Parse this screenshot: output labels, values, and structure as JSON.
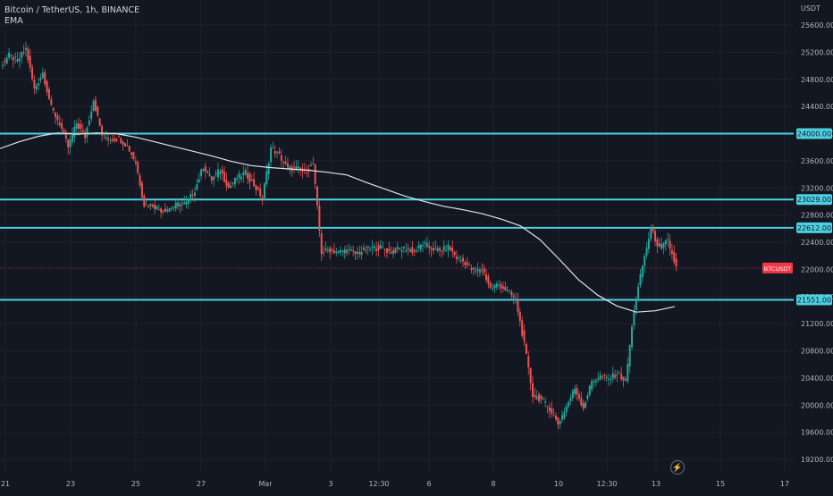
{
  "header": {
    "symbol_line": "Bitcoin / TetherUS, 1h, BINANCE",
    "indicator_label": "EMA"
  },
  "colors": {
    "background": "#131722",
    "grid": "#1e222d",
    "axis_text": "#b2b5be",
    "up": "#26a69a",
    "down": "#ef5350",
    "level_line": "#4dd0e1",
    "ema": "#e0e3eb",
    "price_tag": "#f23645"
  },
  "chart_data": {
    "type": "candlestick",
    "title": "Bitcoin / TetherUS, 1h, BINANCE",
    "currency_label": "USDT",
    "y_ticks": [
      19200,
      19600,
      20000,
      20400,
      20800,
      21200,
      21600,
      22000,
      22400,
      22800,
      23200,
      23600,
      24000,
      24400,
      24800,
      25200,
      25600
    ],
    "ylim": [
      19080,
      25840
    ],
    "x_ticks": [
      "21",
      "23",
      "25",
      "27",
      "Mar",
      "3",
      "12:30",
      "6",
      "8",
      "10",
      "12:30",
      "13",
      "15",
      "17"
    ],
    "horizontal_levels": [
      24000.0,
      23029.0,
      22612.0,
      21551.0
    ],
    "level_labels": [
      "24000.00",
      "23029.00",
      "22612.00",
      "21551.00"
    ],
    "current_price": 22020,
    "current_price_label": "BTCUSDT",
    "indicator": "EMA",
    "price_path": [
      [
        0,
        25000
      ],
      [
        1,
        25150
      ],
      [
        2,
        25070
      ],
      [
        3,
        25250
      ],
      [
        4,
        24650
      ],
      [
        5,
        24900
      ],
      [
        6,
        24380
      ],
      [
        7,
        24150
      ],
      [
        8,
        23800
      ],
      [
        9,
        24150
      ],
      [
        10,
        23950
      ],
      [
        11,
        24500
      ],
      [
        12,
        23980
      ],
      [
        13,
        23920
      ],
      [
        14,
        23930
      ],
      [
        15,
        23820
      ],
      [
        16,
        23580
      ],
      [
        17,
        22950
      ],
      [
        18,
        22950
      ],
      [
        19,
        22870
      ],
      [
        20,
        22900
      ],
      [
        21,
        22960
      ],
      [
        22,
        22970
      ],
      [
        23,
        23170
      ],
      [
        24,
        23520
      ],
      [
        25,
        23320
      ],
      [
        26,
        23470
      ],
      [
        27,
        23200
      ],
      [
        28,
        23350
      ],
      [
        29,
        23420
      ],
      [
        30,
        23240
      ],
      [
        31,
        23050
      ],
      [
        32,
        23790
      ],
      [
        33,
        23680
      ],
      [
        34,
        23480
      ],
      [
        35,
        23490
      ],
      [
        36,
        23430
      ],
      [
        37,
        23550
      ],
      [
        38,
        22250
      ],
      [
        39,
        22290
      ],
      [
        40,
        22250
      ],
      [
        41,
        22290
      ],
      [
        42,
        22230
      ],
      [
        43,
        22280
      ],
      [
        44,
        22310
      ],
      [
        45,
        22320
      ],
      [
        46,
        22260
      ],
      [
        47,
        22290
      ],
      [
        48,
        22310
      ],
      [
        49,
        22260
      ],
      [
        50,
        22380
      ],
      [
        51,
        22310
      ],
      [
        52,
        22270
      ],
      [
        53,
        22330
      ],
      [
        54,
        22170
      ],
      [
        55,
        22100
      ],
      [
        56,
        21970
      ],
      [
        57,
        22010
      ],
      [
        58,
        21720
      ],
      [
        59,
        21780
      ],
      [
        60,
        21680
      ],
      [
        61,
        21550
      ],
      [
        62,
        20900
      ],
      [
        63,
        20150
      ],
      [
        64,
        20080
      ],
      [
        65,
        19950
      ],
      [
        66,
        19720
      ],
      [
        67,
        19980
      ],
      [
        68,
        20250
      ],
      [
        69,
        19960
      ],
      [
        70,
        20350
      ],
      [
        71,
        20420
      ],
      [
        72,
        20380
      ],
      [
        73,
        20470
      ],
      [
        74,
        20350
      ],
      [
        75,
        21400
      ],
      [
        76,
        22050
      ],
      [
        77,
        22600
      ],
      [
        78,
        22300
      ],
      [
        79,
        22420
      ],
      [
        80,
        22020
      ]
    ],
    "ema_path": [
      [
        0,
        23780
      ],
      [
        1,
        23880
      ],
      [
        2,
        23960
      ],
      [
        3,
        24010
      ],
      [
        4,
        23990
      ],
      [
        5,
        24010
      ],
      [
        6,
        24000
      ],
      [
        7,
        23950
      ],
      [
        8,
        23880
      ],
      [
        9,
        23810
      ],
      [
        10,
        23740
      ],
      [
        11,
        23670
      ],
      [
        12,
        23590
      ],
      [
        13,
        23530
      ],
      [
        14,
        23500
      ],
      [
        15,
        23480
      ],
      [
        16,
        23460
      ],
      [
        17,
        23430
      ],
      [
        18,
        23390
      ],
      [
        19,
        23280
      ],
      [
        20,
        23180
      ],
      [
        21,
        23080
      ],
      [
        22,
        23000
      ],
      [
        23,
        22930
      ],
      [
        24,
        22880
      ],
      [
        25,
        22820
      ],
      [
        26,
        22740
      ],
      [
        27,
        22640
      ],
      [
        28,
        22440
      ],
      [
        29,
        22150
      ],
      [
        30,
        21850
      ],
      [
        31,
        21620
      ],
      [
        32,
        21460
      ],
      [
        33,
        21370
      ],
      [
        34,
        21390
      ],
      [
        35,
        21450
      ]
    ],
    "ema_x_range": [
      0,
      755
    ]
  }
}
